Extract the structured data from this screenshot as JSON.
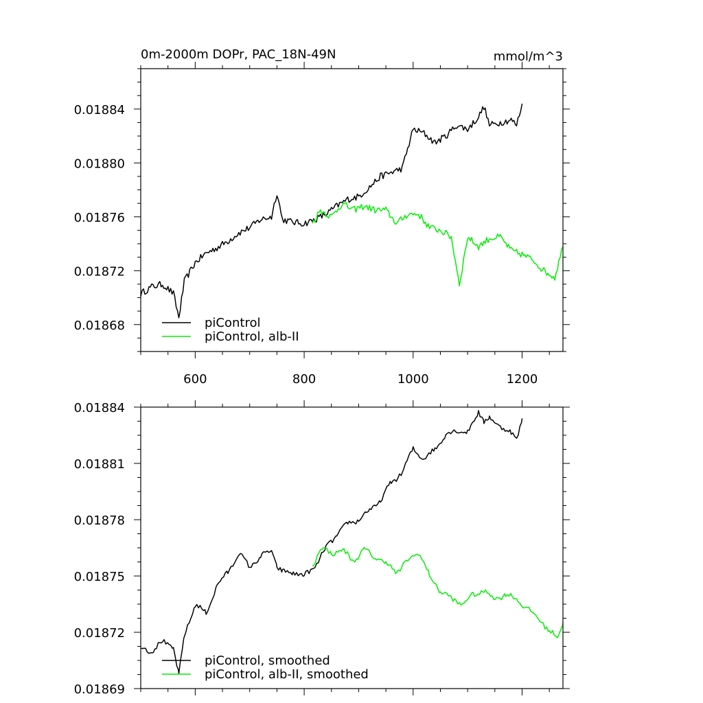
{
  "chart_data": [
    {
      "type": "line",
      "title": "0m-2000m DOPr, PAC_18N-49N",
      "units": "mmol/m^3",
      "xlabel": "",
      "ylabel": "",
      "xlim": [
        500,
        1275
      ],
      "ylim": [
        0.01866,
        0.01887
      ],
      "xticks": [
        600,
        800,
        1000,
        1200
      ],
      "xtick_labels": [
        "600",
        "800",
        "1000",
        "1200"
      ],
      "yticks": [
        0.01868,
        0.01872,
        0.01876,
        0.0188,
        0.01884
      ],
      "ytick_labels": [
        "0.01868",
        "0.01872",
        "0.01876",
        "0.01880",
        "0.01884"
      ],
      "legend_location": "bottom-left",
      "series": [
        {
          "name": "piControl",
          "color": "#000000",
          "x": [
            500,
            520,
            540,
            560,
            570,
            580,
            600,
            620,
            640,
            660,
            680,
            700,
            720,
            740,
            750,
            760,
            780,
            800,
            820,
            840,
            860,
            880,
            900,
            920,
            940,
            960,
            980,
            1000,
            1020,
            1040,
            1060,
            1080,
            1100,
            1120,
            1130,
            1140,
            1160,
            1180,
            1190,
            1200
          ],
          "values": [
            0.018703,
            0.018708,
            0.01871,
            0.018703,
            0.018685,
            0.018712,
            0.018726,
            0.018733,
            0.018737,
            0.018742,
            0.018748,
            0.018752,
            0.018758,
            0.01876,
            0.018778,
            0.018758,
            0.018756,
            0.018755,
            0.018758,
            0.018762,
            0.018768,
            0.018773,
            0.018775,
            0.018782,
            0.01879,
            0.018793,
            0.018796,
            0.018825,
            0.018822,
            0.018815,
            0.01882,
            0.018828,
            0.018825,
            0.018834,
            0.018842,
            0.018828,
            0.01883,
            0.018832,
            0.018828,
            0.018844
          ]
        },
        {
          "name": "piControl, alb-II",
          "color": "#00ee00",
          "x": [
            815,
            830,
            850,
            870,
            890,
            910,
            930,
            950,
            970,
            990,
            1010,
            1030,
            1050,
            1070,
            1085,
            1100,
            1120,
            1140,
            1160,
            1180,
            1200,
            1220,
            1240,
            1260,
            1275
          ],
          "values": [
            0.018755,
            0.018765,
            0.01876,
            0.01877,
            0.018765,
            0.018768,
            0.018765,
            0.018765,
            0.018755,
            0.018762,
            0.018762,
            0.018752,
            0.01875,
            0.018745,
            0.01871,
            0.018745,
            0.018738,
            0.018744,
            0.018745,
            0.018735,
            0.018732,
            0.018728,
            0.01872,
            0.018715,
            0.018738
          ]
        }
      ]
    },
    {
      "type": "line",
      "title": "",
      "xlabel": "",
      "ylabel": "",
      "xlim": [
        500,
        1275
      ],
      "ylim": [
        0.01869,
        0.01884
      ],
      "xticks": [
        600,
        800,
        1000,
        1200
      ],
      "yticks": [
        0.01869,
        0.01872,
        0.01875,
        0.01878,
        0.01881,
        0.01884
      ],
      "ytick_labels": [
        "0.01869",
        "0.01872",
        "0.01875",
        "0.01878",
        "0.01881",
        "0.01884"
      ],
      "legend_location": "bottom-left",
      "series": [
        {
          "name": "piControl, smoothed",
          "color": "#000000",
          "x": [
            500,
            520,
            540,
            560,
            570,
            580,
            600,
            620,
            640,
            660,
            680,
            700,
            720,
            740,
            750,
            760,
            780,
            800,
            820,
            840,
            860,
            880,
            900,
            920,
            940,
            960,
            980,
            1000,
            1020,
            1040,
            1060,
            1080,
            1100,
            1120,
            1130,
            1140,
            1160,
            1180,
            1190,
            1200
          ],
          "values": [
            0.018712,
            0.01871,
            0.018715,
            0.018712,
            0.018697,
            0.018718,
            0.018735,
            0.01873,
            0.018745,
            0.018752,
            0.018762,
            0.018755,
            0.01876,
            0.018764,
            0.018755,
            0.018752,
            0.018752,
            0.01875,
            0.018755,
            0.018765,
            0.018772,
            0.018778,
            0.01878,
            0.018785,
            0.01879,
            0.0188,
            0.018805,
            0.018818,
            0.018812,
            0.018818,
            0.018825,
            0.018828,
            0.018826,
            0.018838,
            0.018832,
            0.018834,
            0.01883,
            0.018826,
            0.018823,
            0.018834
          ]
        },
        {
          "name": "piControl, alb-II, smoothed",
          "color": "#00ee00",
          "x": [
            815,
            830,
            850,
            870,
            890,
            910,
            930,
            950,
            970,
            990,
            1010,
            1030,
            1050,
            1070,
            1090,
            1110,
            1130,
            1150,
            1170,
            1190,
            1210,
            1230,
            1250,
            1265,
            1275
          ],
          "values": [
            0.018755,
            0.018765,
            0.018762,
            0.018764,
            0.018758,
            0.018764,
            0.01876,
            0.018757,
            0.018752,
            0.018758,
            0.018763,
            0.01875,
            0.018742,
            0.018738,
            0.018735,
            0.01874,
            0.018742,
            0.018738,
            0.01874,
            0.018738,
            0.018732,
            0.018728,
            0.01872,
            0.018718,
            0.018725
          ]
        }
      ]
    }
  ]
}
